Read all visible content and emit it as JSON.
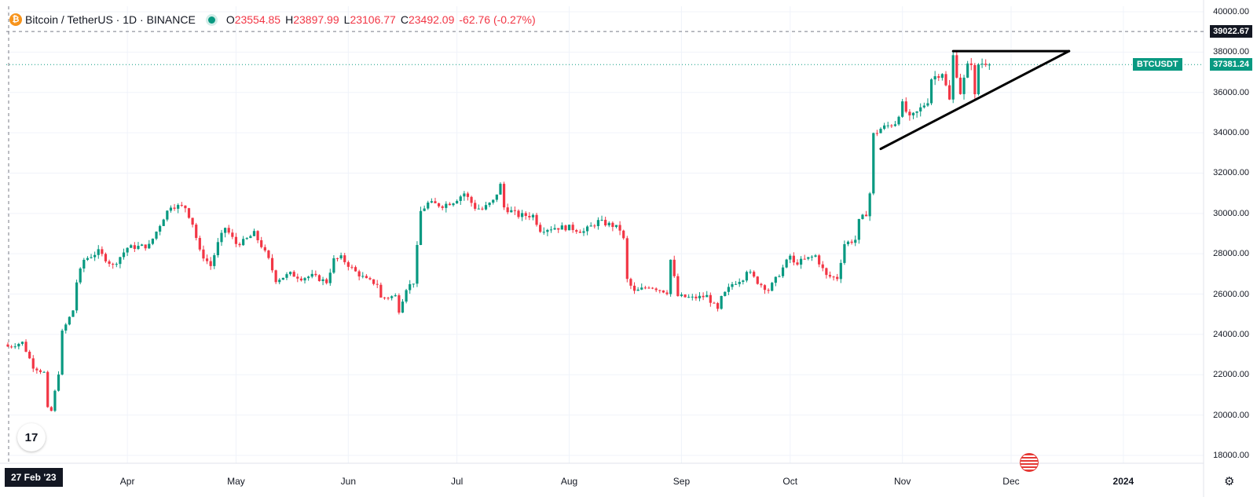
{
  "legend": {
    "symbol": "Bitcoin / TetherUS · 1D · BINANCE",
    "open_label": "O",
    "open": "23554.85",
    "high_label": "H",
    "high": "23897.99",
    "low_label": "L",
    "low": "23106.77",
    "close_label": "C",
    "close": "23492.09",
    "change": "-62.76 (-0.27%)"
  },
  "price_axis": {
    "ticks": [
      "40000.00",
      "38000.00",
      "36000.00",
      "34000.00",
      "32000.00",
      "30000.00",
      "28000.00",
      "26000.00",
      "24000.00",
      "22000.00",
      "20000.00",
      "18000.00"
    ],
    "crosshair_price": "39022.67",
    "last_price": "37381.24",
    "symbol_tag": "BTCUSDT"
  },
  "time_axis": {
    "date_badge": "27 Feb '23",
    "ticks": [
      "Apr",
      "May",
      "Jun",
      "Jul",
      "Aug",
      "Sep",
      "Oct",
      "Nov",
      "Dec",
      "2024"
    ]
  },
  "logo_text": "17",
  "icons": {
    "brand": "bitcoin-icon",
    "logo": "tradingview-logo-icon",
    "event": "us-flag-icon",
    "settings": "gear-icon"
  },
  "colors": {
    "up": "#089981",
    "down": "#f23645",
    "grid": "#f0f3fa",
    "text": "#131722",
    "trendline": "#000000"
  },
  "chart_data": {
    "type": "candlestick",
    "title": "Bitcoin / TetherUS · 1D · BINANCE",
    "x_start": "2023-02-27",
    "ylim": [
      18000,
      40000
    ],
    "grid": true,
    "legend": "top-left",
    "current_price": 37381.24,
    "crosshair_price": 39022.67,
    "series": [
      {
        "type": "trendline",
        "points": [
          [
            "2023-11-15",
            38050
          ],
          [
            "2023-12-17",
            38050
          ]
        ]
      },
      {
        "type": "trendline",
        "points": [
          [
            "2023-10-26",
            33200
          ],
          [
            "2023-12-17",
            38050
          ]
        ]
      }
    ],
    "waypoints": [
      [
        "2023-02-27",
        23400
      ],
      [
        "2023-03-03",
        23600
      ],
      [
        "2023-03-06",
        22400
      ],
      [
        "2023-03-09",
        22100
      ],
      [
        "2023-03-10",
        20300
      ],
      [
        "2023-03-11",
        20200
      ],
      [
        "2023-03-13",
        22100
      ],
      [
        "2023-03-14",
        24100
      ],
      [
        "2023-03-17",
        25200
      ],
      [
        "2023-03-18",
        26600
      ],
      [
        "2023-03-20",
        27700
      ],
      [
        "2023-03-24",
        28100
      ],
      [
        "2023-03-28",
        27400
      ],
      [
        "2023-04-01",
        28300
      ],
      [
        "2023-04-07",
        28400
      ],
      [
        "2023-04-11",
        29800
      ],
      [
        "2023-04-13",
        30400
      ],
      [
        "2023-04-17",
        30300
      ],
      [
        "2023-04-19",
        29500
      ],
      [
        "2023-04-21",
        28100
      ],
      [
        "2023-04-24",
        27400
      ],
      [
        "2023-04-26",
        28500
      ],
      [
        "2023-04-28",
        29300
      ],
      [
        "2023-05-01",
        28500
      ],
      [
        "2023-05-03",
        28600
      ],
      [
        "2023-05-06",
        29000
      ],
      [
        "2023-05-08",
        28400
      ],
      [
        "2023-05-10",
        27700
      ],
      [
        "2023-05-12",
        26700
      ],
      [
        "2023-05-16",
        27000
      ],
      [
        "2023-05-19",
        26800
      ],
      [
        "2023-05-22",
        26900
      ],
      [
        "2023-05-26",
        26600
      ],
      [
        "2023-05-28",
        27700
      ],
      [
        "2023-05-30",
        27800
      ],
      [
        "2023-06-03",
        27100
      ],
      [
        "2023-06-06",
        26700
      ],
      [
        "2023-06-09",
        26500
      ],
      [
        "2023-06-10",
        25800
      ],
      [
        "2023-06-14",
        25900
      ],
      [
        "2023-06-15",
        25200
      ],
      [
        "2023-06-17",
        26300
      ],
      [
        "2023-06-19",
        26600
      ],
      [
        "2023-06-20",
        28300
      ],
      [
        "2023-06-21",
        30100
      ],
      [
        "2023-06-23",
        30500
      ],
      [
        "2023-06-27",
        30400
      ],
      [
        "2023-06-30",
        30600
      ],
      [
        "2023-07-03",
        31000
      ],
      [
        "2023-07-06",
        30300
      ],
      [
        "2023-07-08",
        30200
      ],
      [
        "2023-07-11",
        30600
      ],
      [
        "2023-07-13",
        31400
      ],
      [
        "2023-07-14",
        30300
      ],
      [
        "2023-07-18",
        29900
      ],
      [
        "2023-07-22",
        29900
      ],
      [
        "2023-07-24",
        29200
      ],
      [
        "2023-07-28",
        29300
      ],
      [
        "2023-08-01",
        29300
      ],
      [
        "2023-08-05",
        29100
      ],
      [
        "2023-08-09",
        29600
      ],
      [
        "2023-08-13",
        29400
      ],
      [
        "2023-08-15",
        29200
      ],
      [
        "2023-08-16",
        28700
      ],
      [
        "2023-08-17",
        26700
      ],
      [
        "2023-08-19",
        26100
      ],
      [
        "2023-08-23",
        26400
      ],
      [
        "2023-08-28",
        26100
      ],
      [
        "2023-08-29",
        27700
      ],
      [
        "2023-08-31",
        25900
      ],
      [
        "2023-09-04",
        25800
      ],
      [
        "2023-09-08",
        25900
      ],
      [
        "2023-09-11",
        25200
      ],
      [
        "2023-09-12",
        25800
      ],
      [
        "2023-09-15",
        26500
      ],
      [
        "2023-09-18",
        26800
      ],
      [
        "2023-09-19",
        27200
      ],
      [
        "2023-09-22",
        26600
      ],
      [
        "2023-09-25",
        26200
      ],
      [
        "2023-09-28",
        27000
      ],
      [
        "2023-10-01",
        27900
      ],
      [
        "2023-10-02",
        27500
      ],
      [
        "2023-10-05",
        27700
      ],
      [
        "2023-10-08",
        27900
      ],
      [
        "2023-10-11",
        26900
      ],
      [
        "2023-10-14",
        26800
      ],
      [
        "2023-10-16",
        28500
      ],
      [
        "2023-10-19",
        28700
      ],
      [
        "2023-10-20",
        29600
      ],
      [
        "2023-10-22",
        30000
      ],
      [
        "2023-10-23",
        31000
      ],
      [
        "2023-10-24",
        33900
      ],
      [
        "2023-10-26",
        34200
      ],
      [
        "2023-10-30",
        34500
      ],
      [
        "2023-11-01",
        35400
      ],
      [
        "2023-11-03",
        34700
      ],
      [
        "2023-11-05",
        35000
      ],
      [
        "2023-11-07",
        35400
      ],
      [
        "2023-11-08",
        35600
      ],
      [
        "2023-11-09",
        36700
      ],
      [
        "2023-11-12",
        37000
      ],
      [
        "2023-11-14",
        35600
      ],
      [
        "2023-11-15",
        37800
      ],
      [
        "2023-11-17",
        36000
      ],
      [
        "2023-11-19",
        37300
      ],
      [
        "2023-11-20",
        37500
      ],
      [
        "2023-11-21",
        35800
      ],
      [
        "2023-11-22",
        37400
      ],
      [
        "2023-11-24",
        37500
      ],
      [
        "2023-11-25",
        37381
      ]
    ]
  }
}
